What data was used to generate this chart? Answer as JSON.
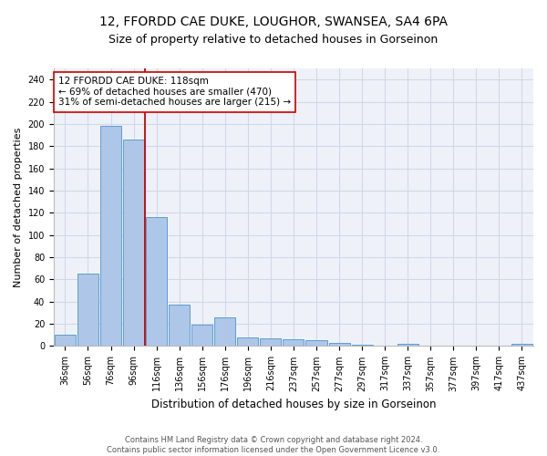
{
  "title1": "12, FFORDD CAE DUKE, LOUGHOR, SWANSEA, SA4 6PA",
  "title2": "Size of property relative to detached houses in Gorseinon",
  "xlabel": "Distribution of detached houses by size in Gorseinon",
  "ylabel": "Number of detached properties",
  "categories": [
    "36sqm",
    "56sqm",
    "76sqm",
    "96sqm",
    "116sqm",
    "136sqm",
    "156sqm",
    "176sqm",
    "196sqm",
    "216sqm",
    "237sqm",
    "257sqm",
    "277sqm",
    "297sqm",
    "317sqm",
    "337sqm",
    "357sqm",
    "377sqm",
    "397sqm",
    "417sqm",
    "437sqm"
  ],
  "values": [
    10,
    65,
    198,
    186,
    116,
    37,
    19,
    26,
    8,
    7,
    6,
    5,
    3,
    1,
    0,
    2,
    0,
    0,
    0,
    0,
    2
  ],
  "bar_color": "#aec6e8",
  "bar_edge_color": "#5a9fd4",
  "bar_edge_width": 0.7,
  "property_line_color": "#cc0000",
  "property_line_index": 3.5,
  "annotation_line1": "12 FFORDD CAE DUKE: 118sqm",
  "annotation_line2": "← 69% of detached houses are smaller (470)",
  "annotation_line3": "31% of semi-detached houses are larger (215) →",
  "annotation_box_color": "white",
  "annotation_box_edge_color": "#cc0000",
  "annotation_box_edge_width": 1.2,
  "ylim": [
    0,
    250
  ],
  "yticks": [
    0,
    20,
    40,
    60,
    80,
    100,
    120,
    140,
    160,
    180,
    200,
    220,
    240
  ],
  "grid_color": "#d0d8e8",
  "background_color": "#eef2f8",
  "footer_text": "Contains HM Land Registry data © Crown copyright and database right 2024.\nContains public sector information licensed under the Open Government Licence v3.0.",
  "title1_fontsize": 10,
  "title2_fontsize": 9,
  "xlabel_fontsize": 8.5,
  "ylabel_fontsize": 8,
  "tick_fontsize": 7,
  "annotation_fontsize": 7.5,
  "footer_fontsize": 6
}
